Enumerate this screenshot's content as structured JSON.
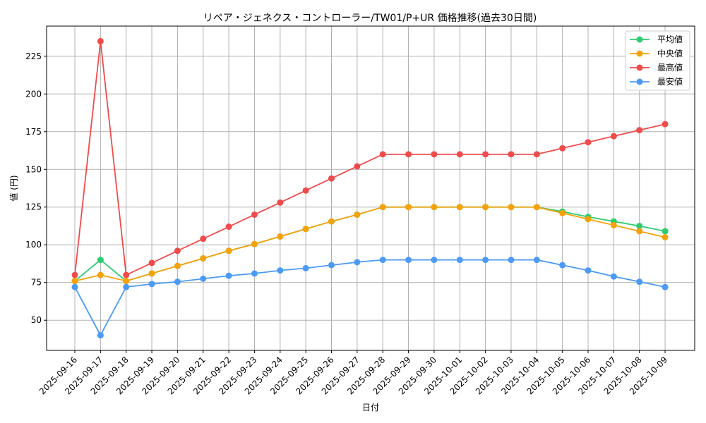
{
  "chart_data": {
    "type": "line",
    "title": "リペア・ジェネクス・コントローラー/TW01/P+UR 価格推移(過去30日間)",
    "xlabel": "日付",
    "ylabel": "値 (円)",
    "ylim": [
      30,
      245
    ],
    "yticks": [
      50,
      75,
      100,
      125,
      150,
      175,
      200,
      225
    ],
    "grid": true,
    "legend_position": "top-right",
    "categories": [
      "2025-09-16",
      "2025-09-17",
      "2025-09-18",
      "2025-09-19",
      "2025-09-20",
      "2025-09-21",
      "2025-09-22",
      "2025-09-23",
      "2025-09-24",
      "2025-09-25",
      "2025-09-26",
      "2025-09-27",
      "2025-09-28",
      "2025-09-29",
      "2025-09-30",
      "2025-10-01",
      "2025-10-02",
      "2025-10-03",
      "2025-10-04",
      "2025-10-05",
      "2025-10-06",
      "2025-10-07",
      "2025-10-08",
      "2025-10-09"
    ],
    "series": [
      {
        "name": "平均値",
        "color": "#2ecc71",
        "values": [
          76,
          90,
          76,
          81,
          86,
          91,
          96,
          100.5,
          105.5,
          110.5,
          115.5,
          120,
          125,
          125,
          125,
          125,
          125,
          125,
          125,
          122,
          118.5,
          115.5,
          112.5,
          109
        ]
      },
      {
        "name": "中央値",
        "color": "#f5a20a",
        "values": [
          76,
          80,
          76,
          81,
          86,
          91,
          96,
          100.5,
          105.5,
          110.5,
          115.5,
          120,
          125,
          125,
          125,
          125,
          125,
          125,
          125,
          121,
          117,
          113,
          109,
          105
        ]
      },
      {
        "name": "最高値",
        "color": "#f04b4b",
        "values": [
          80,
          235,
          80,
          88,
          96,
          104,
          112,
          120,
          128,
          136,
          144,
          152,
          160,
          160,
          160,
          160,
          160,
          160,
          160,
          164,
          168,
          172,
          176,
          180
        ]
      },
      {
        "name": "最安値",
        "color": "#4b9af5",
        "values": [
          72,
          40,
          72,
          74,
          75.5,
          77.5,
          79.5,
          81,
          83,
          84.5,
          86.5,
          88.5,
          90,
          90,
          90,
          90,
          90,
          90,
          90,
          86.5,
          83,
          79,
          75.5,
          72
        ]
      }
    ]
  }
}
